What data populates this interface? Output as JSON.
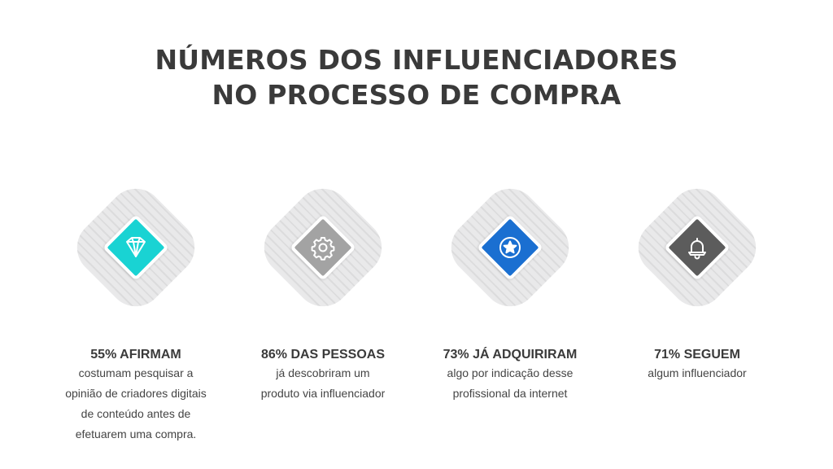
{
  "title": {
    "line1": "NÚMEROS DOS INFLUENCIADORES",
    "line2": "NO PROCESSO DE COMPRA"
  },
  "colors": {
    "accent_cyan": "#19d3d3",
    "accent_gray": "#a3a3a3",
    "accent_blue": "#1a6fd1",
    "accent_dark": "#5c5c5c"
  },
  "cards": [
    {
      "icon": "diamond-gem-icon",
      "heading": "55% AFIRMAM",
      "lines": [
        "costumam pesquisar a",
        "opinião de criadores digitais",
        "de conteúdo antes de",
        "efetuarem uma compra."
      ]
    },
    {
      "icon": "gear-icon",
      "heading": "86% DAS PESSOAS",
      "lines": [
        "já descobriram um",
        "produto via influenciador"
      ]
    },
    {
      "icon": "star-badge-icon",
      "heading": "73% JÁ ADQUIRIRAM",
      "lines": [
        "algo por indicação desse",
        "profissional da internet"
      ]
    },
    {
      "icon": "bell-icon",
      "heading": "71% SEGUEM",
      "lines": [
        "algum influenciador"
      ]
    }
  ]
}
